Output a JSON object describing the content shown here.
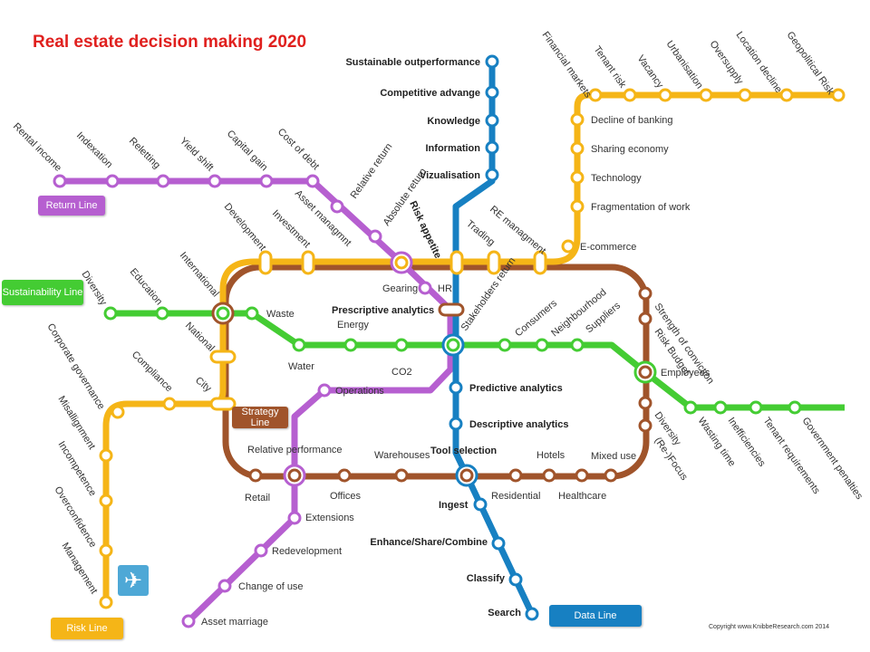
{
  "title": "Real estate decision making 2020",
  "copyright": "Copyright www.KnibbeResearch.com 2014",
  "colors": {
    "purple": "#b65fd0",
    "orange": "#f5b517",
    "green": "#44cc33",
    "blue": "#1780c2",
    "brown": "#a0542b"
  },
  "legend": {
    "return": "Return Line",
    "sustainability": "Sustainability Line",
    "strategy": "Strategy Line",
    "risk": "Risk Line",
    "data": "Data Line"
  },
  "icons": {
    "plane": "airplane-icon"
  },
  "stations": {
    "rental_income": "Rental income",
    "indexation": "Indexation",
    "reletting": "Reletting",
    "yield_shift": "Yield shift",
    "capital_gain": "Capital gain",
    "cost_of_debt": "Cost of debt",
    "relative_return": "Relative return",
    "absolute_return": "Absolute return",
    "risk_appetite": "Risk appetite",
    "gearing": "Gearing",
    "hr": "HR",
    "operations": "Operations",
    "relative_performance": "Relative performance",
    "extensions": "Extensions",
    "redevelopment": "Redevelopment",
    "change_of_use": "Change of use",
    "asset_marriage": "Asset marriage",
    "financial_markets": "Financial markets",
    "tenant_risk": "Tenant risk",
    "vacancy": "Vacancy",
    "urbanisation": "Urbanisation",
    "oversupply": "Oversupply",
    "location_decline": "Location decline",
    "geopolitical_risk": "Geopolitical Risk",
    "decline_of_banking": "Decline of banking",
    "sharing_economy": "Sharing economy",
    "technology": "Technology",
    "fragmentation_of_work": "Fragmentation of work",
    "e_commerce": "E-commerce",
    "re_managment": "RE managment",
    "trading": "Trading",
    "asset_managmnt": "Asset managmnt",
    "investment": "Investment",
    "development": "Development",
    "international": "International",
    "national": "National",
    "city": "City",
    "compliance": "Compliance",
    "corporate_governance": "Corporate governance",
    "misallignment": "Misallignment",
    "incompetence": "Incompetence",
    "overconfidence": "Overconfidence",
    "management": "Management",
    "diversity": "Diversity",
    "education": "Education",
    "waste": "Waste",
    "energy": "Energy",
    "water": "Water",
    "co2": "CO2",
    "consumers": "Consumers",
    "neighbourhood": "Neighbourhood",
    "suppliers": "Suppliers",
    "employees": "Employees",
    "wasting_time": "Wasting time",
    "inefficiencies": "Inefficiencies",
    "tenant_requirements": "Tenant requirements",
    "government_penalties": "Government penalties",
    "sustainable_outperformance": "Sustainable outperformance",
    "competitive_advange": "Competitive advange",
    "knowledge": "Knowledge",
    "information": "Information",
    "vizualisation": "Vizualisation",
    "prescriptive_analytics": "Prescriptive analytics",
    "predictive_analytics": "Predictive analytics",
    "descriptive_analytics": "Descriptive analytics",
    "tool_selection": "Tool selection",
    "ingest": "Ingest",
    "enhance": "Enhance/Share/Combine",
    "classify": "Classify",
    "search": "Search",
    "stakeholders_return": "Stakeholders return",
    "strength_of_conviction": "Strength of conviction",
    "risk_budget": "Risk Budget",
    "diversity_strategy": "Diversity",
    "refocus": "(Re-)Focus",
    "retail": "Retail",
    "offices": "Offices",
    "warehouses": "Warehouses",
    "residential": "Residential",
    "hotels": "Hotels",
    "healthcare": "Healthcare",
    "mixed_use": "Mixed use"
  }
}
